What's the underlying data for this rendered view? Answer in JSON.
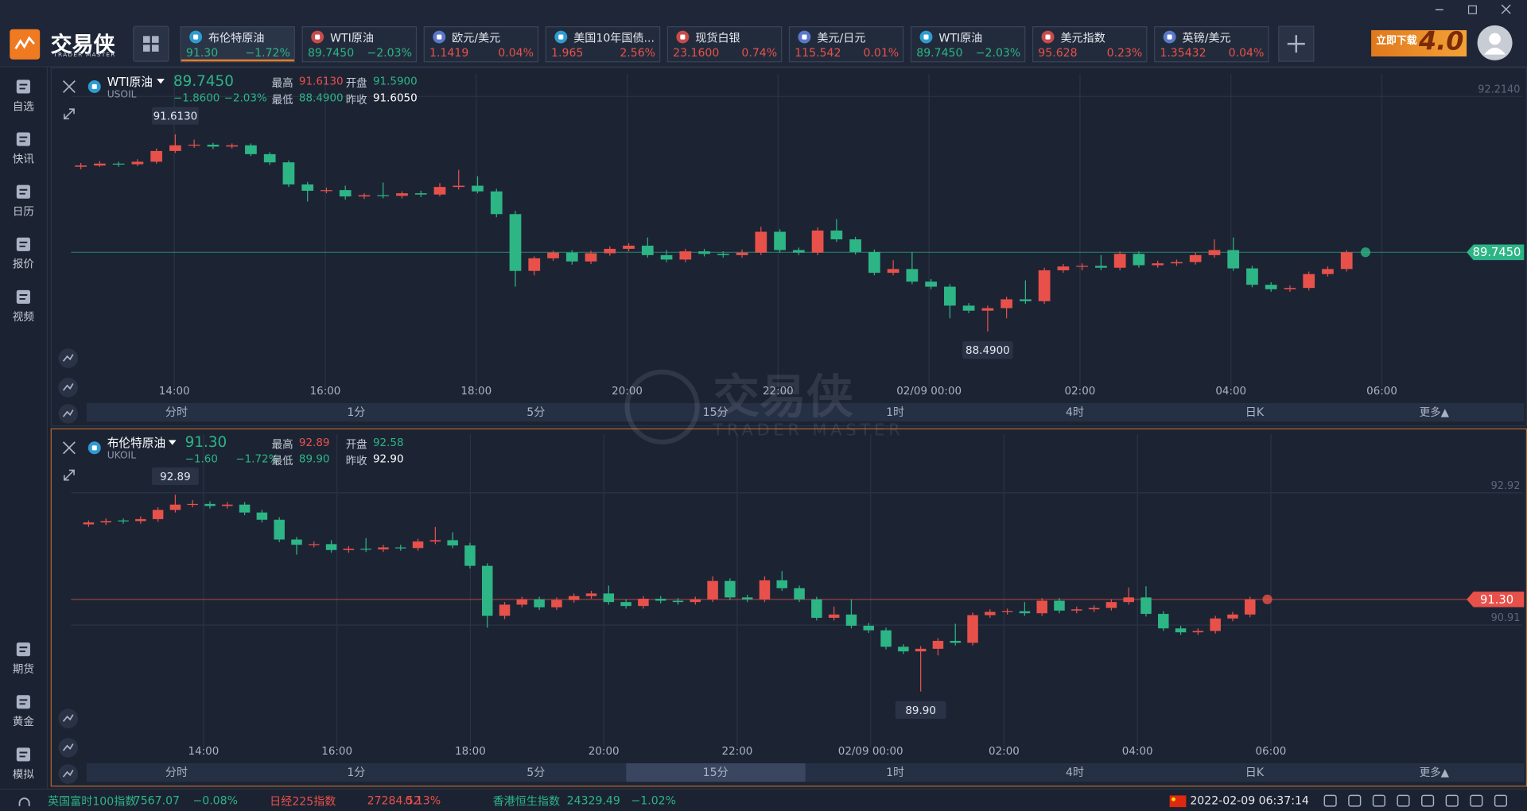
{
  "app": {
    "logo": "交易侠",
    "logo_sub": "TRADER MASTER",
    "ad": "立即下载",
    "ad_version": "4.0"
  },
  "active_ticker": 0,
  "tickers": [
    {
      "name": "布伦特原油",
      "price": "91.30",
      "change": "−1.72%"
    },
    {
      "name": "WTI原油",
      "price": "89.7450",
      "change": "−2.03%"
    },
    {
      "name": "欧元/美元",
      "price": "1.1419",
      "change": "0.04%"
    },
    {
      "name": "美国10年国债...",
      "price": "1.965",
      "change": "2.56%"
    },
    {
      "name": "现货白银",
      "price": "23.1600",
      "change": "0.74%"
    },
    {
      "name": "美元/日元",
      "price": "115.542",
      "change": "0.01%"
    },
    {
      "name": "WTI原油",
      "price": "89.7450",
      "change": "−2.03%"
    },
    {
      "name": "美元指数",
      "price": "95.628",
      "change": "0.23%"
    },
    {
      "name": "英镑/美元",
      "price": "1.35432",
      "change": "0.04%"
    }
  ],
  "sidebar_top": [
    "自选",
    "快讯",
    "日历",
    "报价",
    "视频"
  ],
  "sidebar_bottom": [
    "期货",
    "黄金",
    "模拟"
  ],
  "watermark": {
    "name": "交易侠",
    "sub": "TRADER MASTER"
  },
  "charts": [
    {
      "type": "candlestick",
      "name": "WTI原油",
      "code": "USOIL",
      "price": "89.7450",
      "change": "−1.8600",
      "change_pct": "−2.03%",
      "high_label": "最高",
      "high": "91.6130",
      "open_label": "开盘",
      "open": "91.5900",
      "low_label": "最低",
      "low": "88.4900",
      "prev_label": "昨收",
      "prev": "91.6050",
      "up_color": "#e8514a",
      "down_color": "#2db585",
      "price_line_color": "#2db585",
      "ylim": [
        87.68,
        92.57
      ],
      "yticks": [
        {
          "value": 92.214,
          "label": "92.2140"
        }
      ],
      "price_tag": {
        "value": 89.745,
        "label": "89.7450"
      },
      "xticks": [
        "14:00",
        "16:00",
        "18:00",
        "20:00",
        "22:00",
        "02/09 00:00",
        "02:00",
        "04:00",
        "06:00"
      ],
      "periods": [
        "分时",
        "1分",
        "5分",
        "15分",
        "1时",
        "4时",
        "日K"
      ],
      "more": "更多▲",
      "candles": [
        [
          91.1,
          91.16,
          91.06,
          91.12
        ],
        [
          91.12,
          91.19,
          91.1,
          91.15
        ],
        [
          91.15,
          91.18,
          91.1,
          91.14
        ],
        [
          91.14,
          91.22,
          91.11,
          91.18
        ],
        [
          91.18,
          91.39,
          91.15,
          91.35
        ],
        [
          91.35,
          91.613,
          91.32,
          91.44
        ],
        [
          91.44,
          91.53,
          91.4,
          91.45
        ],
        [
          91.45,
          91.48,
          91.38,
          91.42
        ],
        [
          91.42,
          91.47,
          91.39,
          91.44
        ],
        [
          91.44,
          91.47,
          91.27,
          91.3
        ],
        [
          91.3,
          91.33,
          91.13,
          91.17
        ],
        [
          91.17,
          91.2,
          90.78,
          90.82
        ],
        [
          90.82,
          90.86,
          90.55,
          90.72
        ],
        [
          90.72,
          90.77,
          90.68,
          90.73
        ],
        [
          90.73,
          90.8,
          90.58,
          90.63
        ],
        [
          90.63,
          90.68,
          90.59,
          90.65
        ],
        [
          90.65,
          90.85,
          90.6,
          90.64
        ],
        [
          90.64,
          90.71,
          90.6,
          90.68
        ],
        [
          90.68,
          90.72,
          90.62,
          90.66
        ],
        [
          90.66,
          90.84,
          90.63,
          90.78
        ],
        [
          90.78,
          91.05,
          90.74,
          90.8
        ],
        [
          90.8,
          90.95,
          90.68,
          90.71
        ],
        [
          90.71,
          90.75,
          90.3,
          90.35
        ],
        [
          90.35,
          90.4,
          89.2,
          89.45
        ],
        [
          89.45,
          89.68,
          89.38,
          89.65
        ],
        [
          89.65,
          89.77,
          89.61,
          89.74
        ],
        [
          89.74,
          89.78,
          89.55,
          89.6
        ],
        [
          89.6,
          89.77,
          89.56,
          89.73
        ],
        [
          89.73,
          89.84,
          89.69,
          89.8
        ],
        [
          89.8,
          89.89,
          89.76,
          89.85
        ],
        [
          89.85,
          89.98,
          89.66,
          89.7
        ],
        [
          89.7,
          89.78,
          89.59,
          89.63
        ],
        [
          89.63,
          89.8,
          89.59,
          89.76
        ],
        [
          89.76,
          89.8,
          89.68,
          89.72
        ],
        [
          89.72,
          89.76,
          89.66,
          89.7
        ],
        [
          89.7,
          89.79,
          89.66,
          89.74
        ],
        [
          89.74,
          90.15,
          89.7,
          90.07
        ],
        [
          90.07,
          90.11,
          89.74,
          89.78
        ],
        [
          89.78,
          89.82,
          89.7,
          89.74
        ],
        [
          89.74,
          90.14,
          89.7,
          90.09
        ],
        [
          90.09,
          90.27,
          89.91,
          89.95
        ],
        [
          89.95,
          89.99,
          89.71,
          89.75
        ],
        [
          89.75,
          89.79,
          89.38,
          89.42
        ],
        [
          89.42,
          89.62,
          89.38,
          89.48
        ],
        [
          89.48,
          89.75,
          89.24,
          89.28
        ],
        [
          89.28,
          89.32,
          89.16,
          89.2
        ],
        [
          89.2,
          89.24,
          88.7,
          88.9
        ],
        [
          88.9,
          88.94,
          88.78,
          88.82
        ],
        [
          88.82,
          88.9,
          88.49,
          88.86
        ],
        [
          88.86,
          89.04,
          88.7,
          89.0
        ],
        [
          89.0,
          89.3,
          88.93,
          88.97
        ],
        [
          88.97,
          89.5,
          88.93,
          89.46
        ],
        [
          89.46,
          89.56,
          89.42,
          89.52
        ],
        [
          89.52,
          89.57,
          89.46,
          89.53
        ],
        [
          89.53,
          89.7,
          89.46,
          89.5
        ],
        [
          89.5,
          89.76,
          89.46,
          89.72
        ],
        [
          89.72,
          89.76,
          89.5,
          89.54
        ],
        [
          89.54,
          89.61,
          89.5,
          89.57
        ],
        [
          89.57,
          89.63,
          89.53,
          89.59
        ],
        [
          89.59,
          89.74,
          89.55,
          89.7
        ],
        [
          89.7,
          89.95,
          89.66,
          89.78
        ],
        [
          89.78,
          89.98,
          89.45,
          89.49
        ],
        [
          89.49,
          89.53,
          89.19,
          89.23
        ],
        [
          89.23,
          89.27,
          89.12,
          89.16
        ],
        [
          89.16,
          89.22,
          89.12,
          89.18
        ],
        [
          89.18,
          89.44,
          89.14,
          89.4
        ],
        [
          89.4,
          89.52,
          89.36,
          89.48
        ],
        [
          89.48,
          89.78,
          89.44,
          89.745
        ]
      ]
    },
    {
      "type": "candlestick",
      "name": "布伦特原油",
      "code": "UKOIL",
      "price": "91.30",
      "change": "−1.60",
      "change_pct": "−1.72%",
      "high_label": "最高",
      "high": "92.89",
      "open_label": "开盘",
      "open": "92.58",
      "low_label": "最低",
      "low": "89.90",
      "prev_label": "昨收",
      "prev": "92.90",
      "up_color": "#e8514a",
      "down_color": "#2db585",
      "price_line_color": "#e8514a",
      "ylim": [
        89.12,
        93.81
      ],
      "yticks": [
        92.92,
        90.91
      ],
      "price_tag": {
        "value": 91.3,
        "label": "91.30"
      },
      "xticks": [
        "14:00",
        "16:00",
        "18:00",
        "20:00",
        "22:00",
        "02/09 00:00",
        "02:00",
        "04:00",
        "06:00"
      ],
      "periods": [
        "分时",
        "1分",
        "5分",
        "15分",
        "1时",
        "4时",
        "日K"
      ],
      "more": "更多▲",
      "active_period": 3,
      "candles": [
        [
          92.44,
          92.5,
          92.4,
          92.47
        ],
        [
          92.47,
          92.53,
          92.43,
          92.49
        ],
        [
          92.5,
          92.53,
          92.45,
          92.49
        ],
        [
          92.49,
          92.56,
          92.45,
          92.52
        ],
        [
          92.52,
          92.7,
          92.48,
          92.66
        ],
        [
          92.66,
          92.89,
          92.62,
          92.74
        ],
        [
          92.74,
          92.81,
          92.7,
          92.75
        ],
        [
          92.75,
          92.79,
          92.68,
          92.72
        ],
        [
          92.72,
          92.78,
          92.68,
          92.74
        ],
        [
          92.74,
          92.78,
          92.58,
          92.62
        ],
        [
          92.62,
          92.66,
          92.47,
          92.51
        ],
        [
          92.51,
          92.55,
          92.17,
          92.21
        ],
        [
          92.21,
          92.25,
          91.98,
          92.13
        ],
        [
          92.13,
          92.18,
          92.09,
          92.14
        ],
        [
          92.14,
          92.2,
          92.01,
          92.05
        ],
        [
          92.05,
          92.11,
          92.01,
          92.07
        ],
        [
          92.07,
          92.23,
          92.02,
          92.06
        ],
        [
          92.06,
          92.13,
          92.02,
          92.09
        ],
        [
          92.09,
          92.13,
          92.04,
          92.08
        ],
        [
          92.08,
          92.22,
          92.04,
          92.18
        ],
        [
          92.18,
          92.4,
          92.14,
          92.2
        ],
        [
          92.2,
          92.32,
          92.08,
          92.12
        ],
        [
          92.12,
          92.16,
          91.77,
          91.81
        ],
        [
          91.81,
          91.85,
          90.87,
          91.05
        ],
        [
          91.05,
          91.26,
          91.0,
          91.22
        ],
        [
          91.22,
          91.34,
          91.18,
          91.3
        ],
        [
          91.3,
          91.34,
          91.14,
          91.18
        ],
        [
          91.18,
          91.33,
          91.14,
          91.29
        ],
        [
          91.29,
          91.39,
          91.25,
          91.35
        ],
        [
          91.35,
          91.43,
          91.31,
          91.39
        ],
        [
          91.39,
          91.51,
          91.22,
          91.26
        ],
        [
          91.26,
          91.3,
          91.16,
          91.2
        ],
        [
          91.2,
          91.35,
          91.16,
          91.31
        ],
        [
          91.31,
          91.35,
          91.24,
          91.28
        ],
        [
          91.28,
          91.32,
          91.22,
          91.26
        ],
        [
          91.26,
          91.34,
          91.22,
          91.3
        ],
        [
          91.3,
          91.65,
          91.26,
          91.58
        ],
        [
          91.58,
          91.62,
          91.29,
          91.33
        ],
        [
          91.33,
          91.37,
          91.26,
          91.3
        ],
        [
          91.3,
          91.65,
          91.26,
          91.59
        ],
        [
          91.59,
          91.73,
          91.43,
          91.47
        ],
        [
          91.47,
          91.51,
          91.26,
          91.3
        ],
        [
          91.3,
          91.34,
          90.98,
          91.02
        ],
        [
          91.02,
          91.19,
          90.98,
          91.07
        ],
        [
          91.07,
          91.3,
          90.86,
          90.9
        ],
        [
          90.9,
          90.94,
          90.79,
          90.83
        ],
        [
          90.83,
          90.87,
          90.54,
          90.58
        ],
        [
          90.58,
          90.62,
          90.47,
          90.51
        ],
        [
          90.51,
          90.59,
          89.9,
          90.55
        ],
        [
          90.55,
          90.71,
          90.45,
          90.67
        ],
        [
          90.67,
          90.93,
          90.6,
          90.64
        ],
        [
          90.64,
          91.1,
          90.6,
          91.06
        ],
        [
          91.06,
          91.15,
          91.02,
          91.11
        ],
        [
          91.11,
          91.16,
          91.07,
          91.12
        ],
        [
          91.12,
          91.26,
          91.05,
          91.09
        ],
        [
          91.09,
          91.32,
          91.05,
          91.28
        ],
        [
          91.28,
          91.32,
          91.09,
          91.13
        ],
        [
          91.13,
          91.19,
          91.09,
          91.15
        ],
        [
          91.15,
          91.21,
          91.11,
          91.17
        ],
        [
          91.17,
          91.3,
          91.13,
          91.26
        ],
        [
          91.26,
          91.48,
          91.22,
          91.33
        ],
        [
          91.33,
          91.5,
          91.04,
          91.08
        ],
        [
          91.08,
          91.12,
          90.82,
          90.86
        ],
        [
          90.86,
          90.9,
          90.76,
          90.8
        ],
        [
          90.8,
          90.86,
          90.76,
          90.82
        ],
        [
          90.82,
          91.05,
          90.78,
          91.01
        ],
        [
          91.01,
          91.11,
          90.97,
          91.07
        ],
        [
          91.07,
          91.34,
          91.03,
          91.3
        ]
      ]
    }
  ],
  "status": {
    "indices": [
      {
        "name": "英国富时100指数",
        "price": "7567.07",
        "change": "−0.08%"
      },
      {
        "name": "日经225指数",
        "price": "27284.52",
        "change": "0.13%"
      },
      {
        "name": "香港恒生指数",
        "price": "24329.49",
        "change": "−1.02%"
      }
    ],
    "datetime": "2022-02-09 06:37:14"
  }
}
